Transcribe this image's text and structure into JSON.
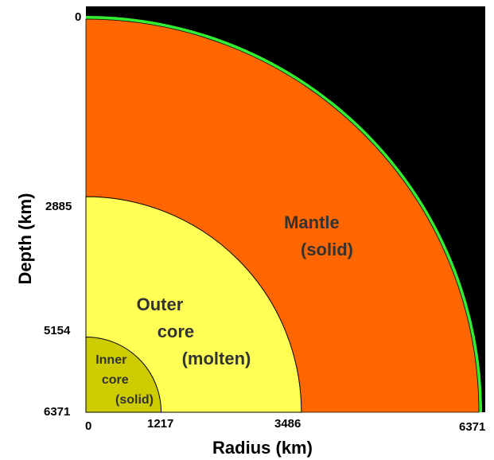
{
  "title": "",
  "axes": {
    "xlabel": "Radius (km)",
    "ylabel": "Depth (km)",
    "x_ticks": [
      "0",
      "1217",
      "3486",
      "6371"
    ],
    "y_ticks": [
      "0",
      "2885",
      "5154",
      "6371"
    ],
    "max_value": 6371
  },
  "layers": {
    "crust": {
      "color": "#33ee33"
    },
    "mantle": {
      "radius": 6371,
      "color": "#ff6600",
      "label_line1": "Mantle",
      "label_line2": "(solid)"
    },
    "outer_core": {
      "radius": 3486,
      "color": "#ffff55",
      "label_line1": "Outer",
      "label_line2": "core",
      "label_line3": "(molten)"
    },
    "inner_core": {
      "radius": 1217,
      "color": "#cccc00",
      "label_line1": "Inner",
      "label_line2": "core",
      "label_line3": "(solid)"
    }
  },
  "background_color": "#000000"
}
